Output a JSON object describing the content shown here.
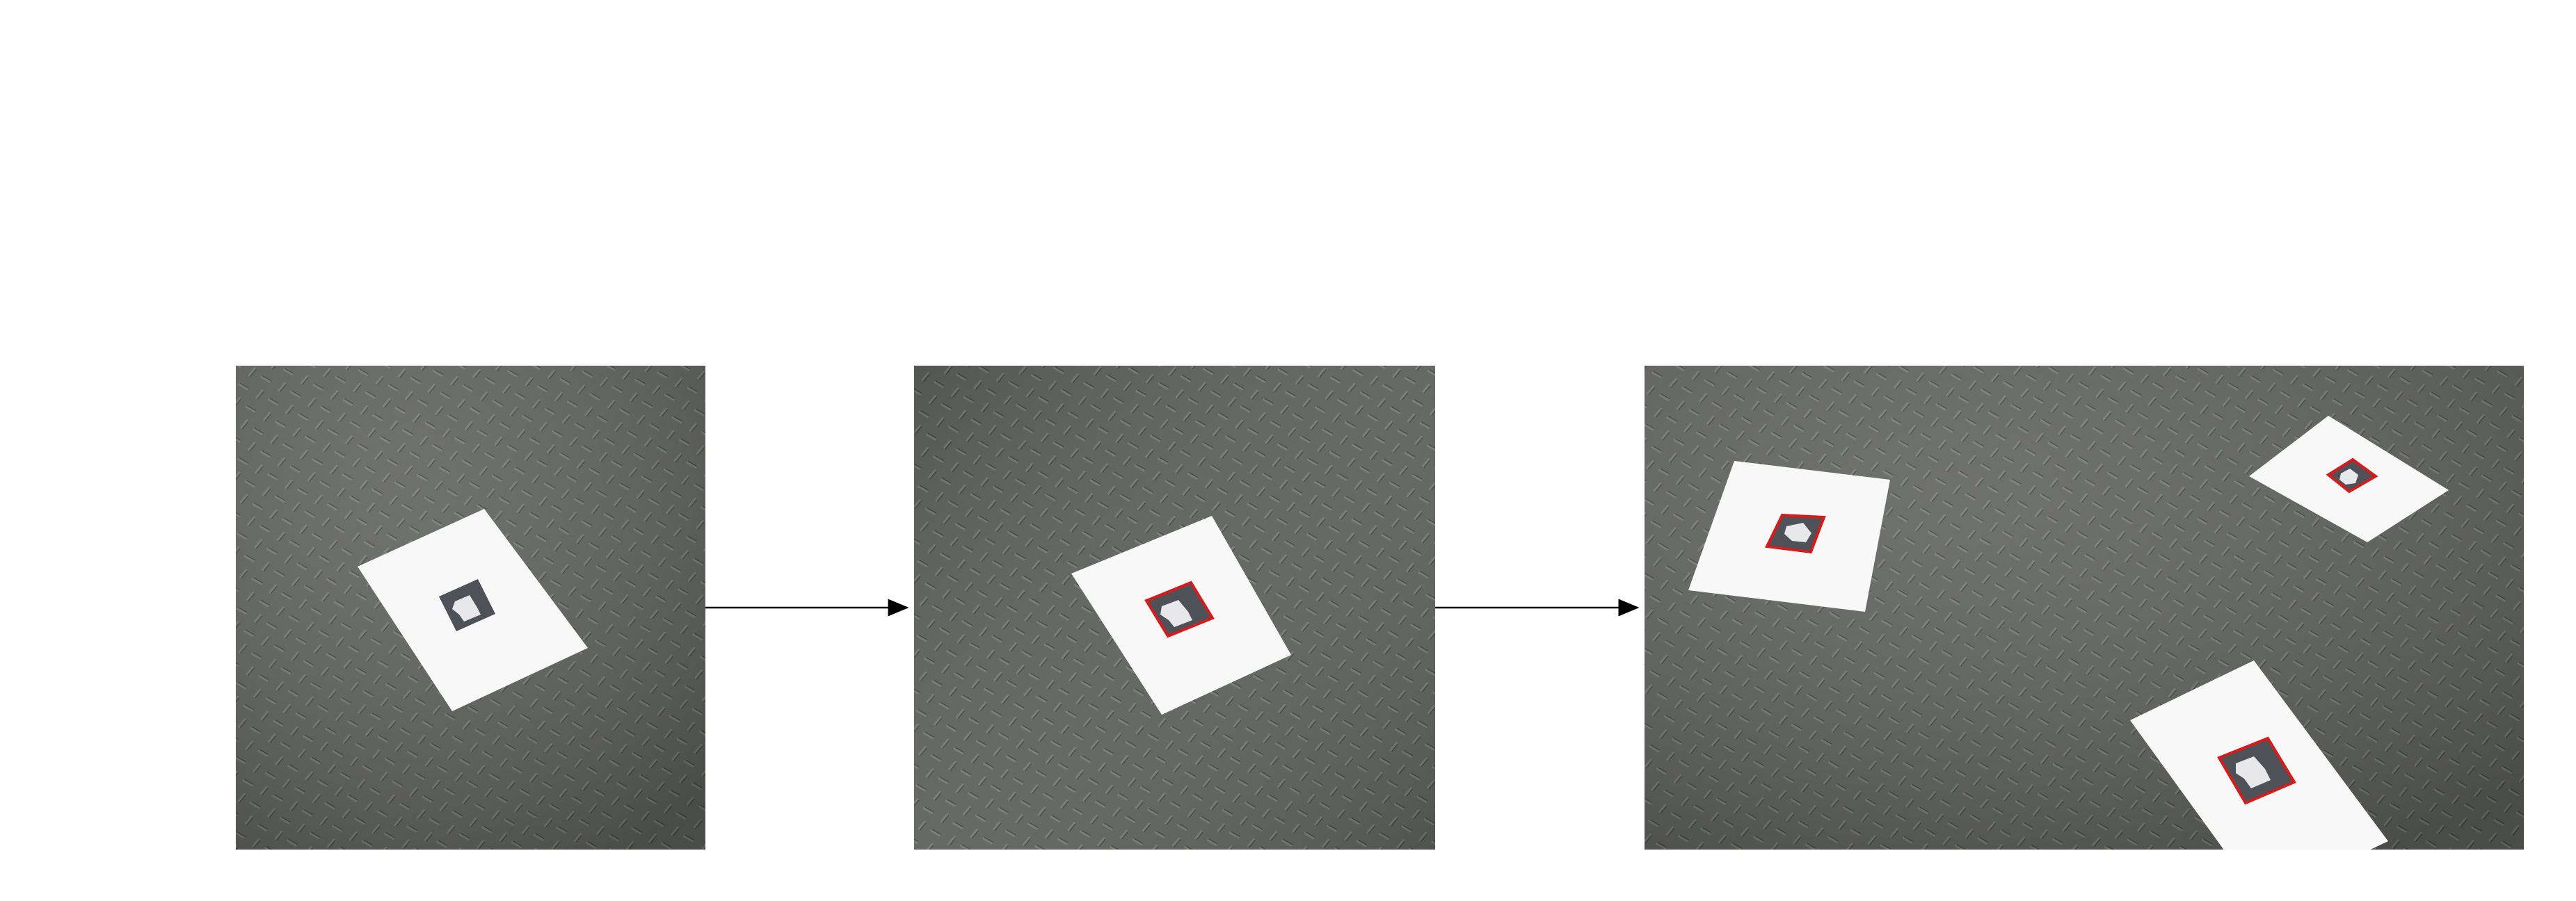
{
  "figure": {
    "background": "#ffffff",
    "panels": [
      {
        "id": "raw-input",
        "markers": 1,
        "marker_outline": "none"
      },
      {
        "id": "single-detection",
        "markers": 1,
        "marker_outline": "red"
      },
      {
        "id": "multi-detection",
        "markers": 3,
        "marker_outline": "red"
      }
    ],
    "arrows": [
      {
        "from": "raw-input",
        "to": "single-detection"
      },
      {
        "from": "single-detection",
        "to": "multi-detection"
      }
    ],
    "colors": {
      "floor": "#5f615e",
      "floor_dark": "#4a4c49",
      "floor_light": "#7a7d78",
      "paper": "#f8f8f8",
      "marker_dark": "#4e5258",
      "marker_light": "#e8e8ea",
      "detection_outline": "#d81a1a",
      "arrow": "#000000"
    }
  }
}
